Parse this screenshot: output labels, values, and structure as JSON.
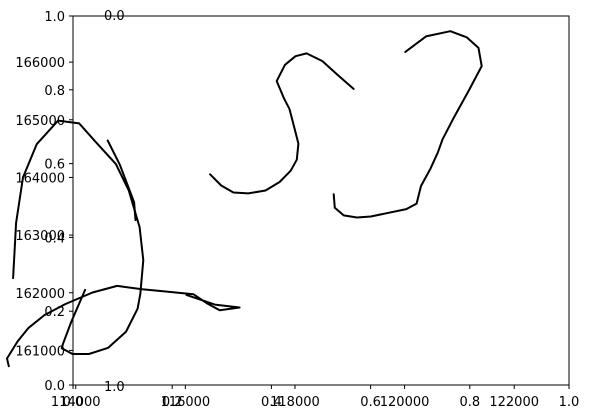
{
  "chart_data": {
    "type": "line",
    "overlay_axes": {
      "x_ticks": [
        "0.0",
        "0.2",
        "0.4",
        "0.6",
        "0.8",
        "1.0"
      ],
      "y_ticks": [
        "0.0",
        "0.2",
        "0.4",
        "0.6",
        "0.8",
        "1.0"
      ],
      "xlim": [
        0,
        1
      ],
      "ylim": [
        0,
        1
      ]
    },
    "data_axes": {
      "x_tick_labels": [
        "114000",
        "116000",
        "118000",
        "120000",
        "122000"
      ],
      "y_tick_labels": [
        "161000",
        "162000",
        "163000",
        "164000",
        "165000",
        "166000"
      ],
      "xlim": [
        113950,
        123000
      ],
      "ylim": [
        160400,
        166800
      ]
    },
    "extra_labels": {
      "top_left_label": "0.0",
      "bottom_left_label": "1.0"
    },
    "series": [
      {
        "points": [
          [
            112779,
            160726
          ],
          [
            112745,
            160860
          ],
          [
            112939,
            161156
          ],
          [
            113133,
            161385
          ],
          [
            113429,
            161612
          ],
          [
            113814,
            161805
          ],
          [
            114305,
            162005
          ],
          [
            114755,
            162118
          ],
          [
            115212,
            162061
          ],
          [
            115617,
            162023
          ],
          [
            116146,
            161975
          ],
          [
            116387,
            161820
          ],
          [
            116626,
            161696
          ],
          [
            116989,
            161745
          ],
          [
            116537,
            161795
          ],
          [
            116021,
            161962
          ]
        ]
      },
      {
        "points": [
          [
            114170,
            162050
          ],
          [
            113917,
            161493
          ],
          [
            113767,
            161115
          ],
          [
            113745,
            161036
          ],
          [
            113940,
            160938
          ],
          [
            114240,
            160938
          ],
          [
            114593,
            161046
          ],
          [
            114917,
            161325
          ],
          [
            115128,
            161724
          ],
          [
            115178,
            161979
          ],
          [
            115232,
            162565
          ],
          [
            115165,
            163138
          ],
          [
            114969,
            163772
          ],
          [
            114732,
            164232
          ],
          [
            114350,
            164630
          ],
          [
            114064,
            164938
          ],
          [
            113679,
            164985
          ],
          [
            113288,
            164577
          ],
          [
            113037,
            164001
          ],
          [
            112912,
            163214
          ],
          [
            112857,
            162254
          ]
        ]
      },
      {
        "points": [
          [
            115091,
            163260
          ],
          [
            115065,
            163571
          ],
          [
            114803,
            164221
          ],
          [
            114584,
            164641
          ]
        ]
      },
      {
        "points": [
          [
            116451,
            164054
          ],
          [
            116654,
            163861
          ],
          [
            116876,
            163738
          ],
          [
            117148,
            163723
          ],
          [
            117463,
            163773
          ],
          [
            117719,
            163920
          ],
          [
            117922,
            164117
          ],
          [
            118034,
            164308
          ],
          [
            118062,
            164587
          ],
          [
            117982,
            164886
          ],
          [
            117900,
            165186
          ],
          [
            117802,
            165368
          ],
          [
            117667,
            165671
          ],
          [
            117818,
            165953
          ],
          [
            118009,
            166102
          ],
          [
            118213,
            166151
          ],
          [
            118500,
            166018
          ],
          [
            118785,
            165773
          ],
          [
            119069,
            165536
          ]
        ]
      },
      {
        "points": [
          [
            120013,
            166177
          ],
          [
            120390,
            166447
          ],
          [
            120834,
            166537
          ],
          [
            121133,
            166430
          ],
          [
            121348,
            166247
          ],
          [
            121407,
            165931
          ],
          [
            121180,
            165523
          ],
          [
            120903,
            165046
          ],
          [
            120691,
            164659
          ],
          [
            120607,
            164430
          ],
          [
            120473,
            164154
          ],
          [
            120300,
            163851
          ],
          [
            120220,
            163547
          ],
          [
            120031,
            163451
          ],
          [
            119675,
            163379
          ],
          [
            119383,
            163323
          ],
          [
            119130,
            163306
          ],
          [
            118890,
            163342
          ],
          [
            118726,
            163474
          ],
          [
            118707,
            163707
          ]
        ]
      }
    ]
  }
}
